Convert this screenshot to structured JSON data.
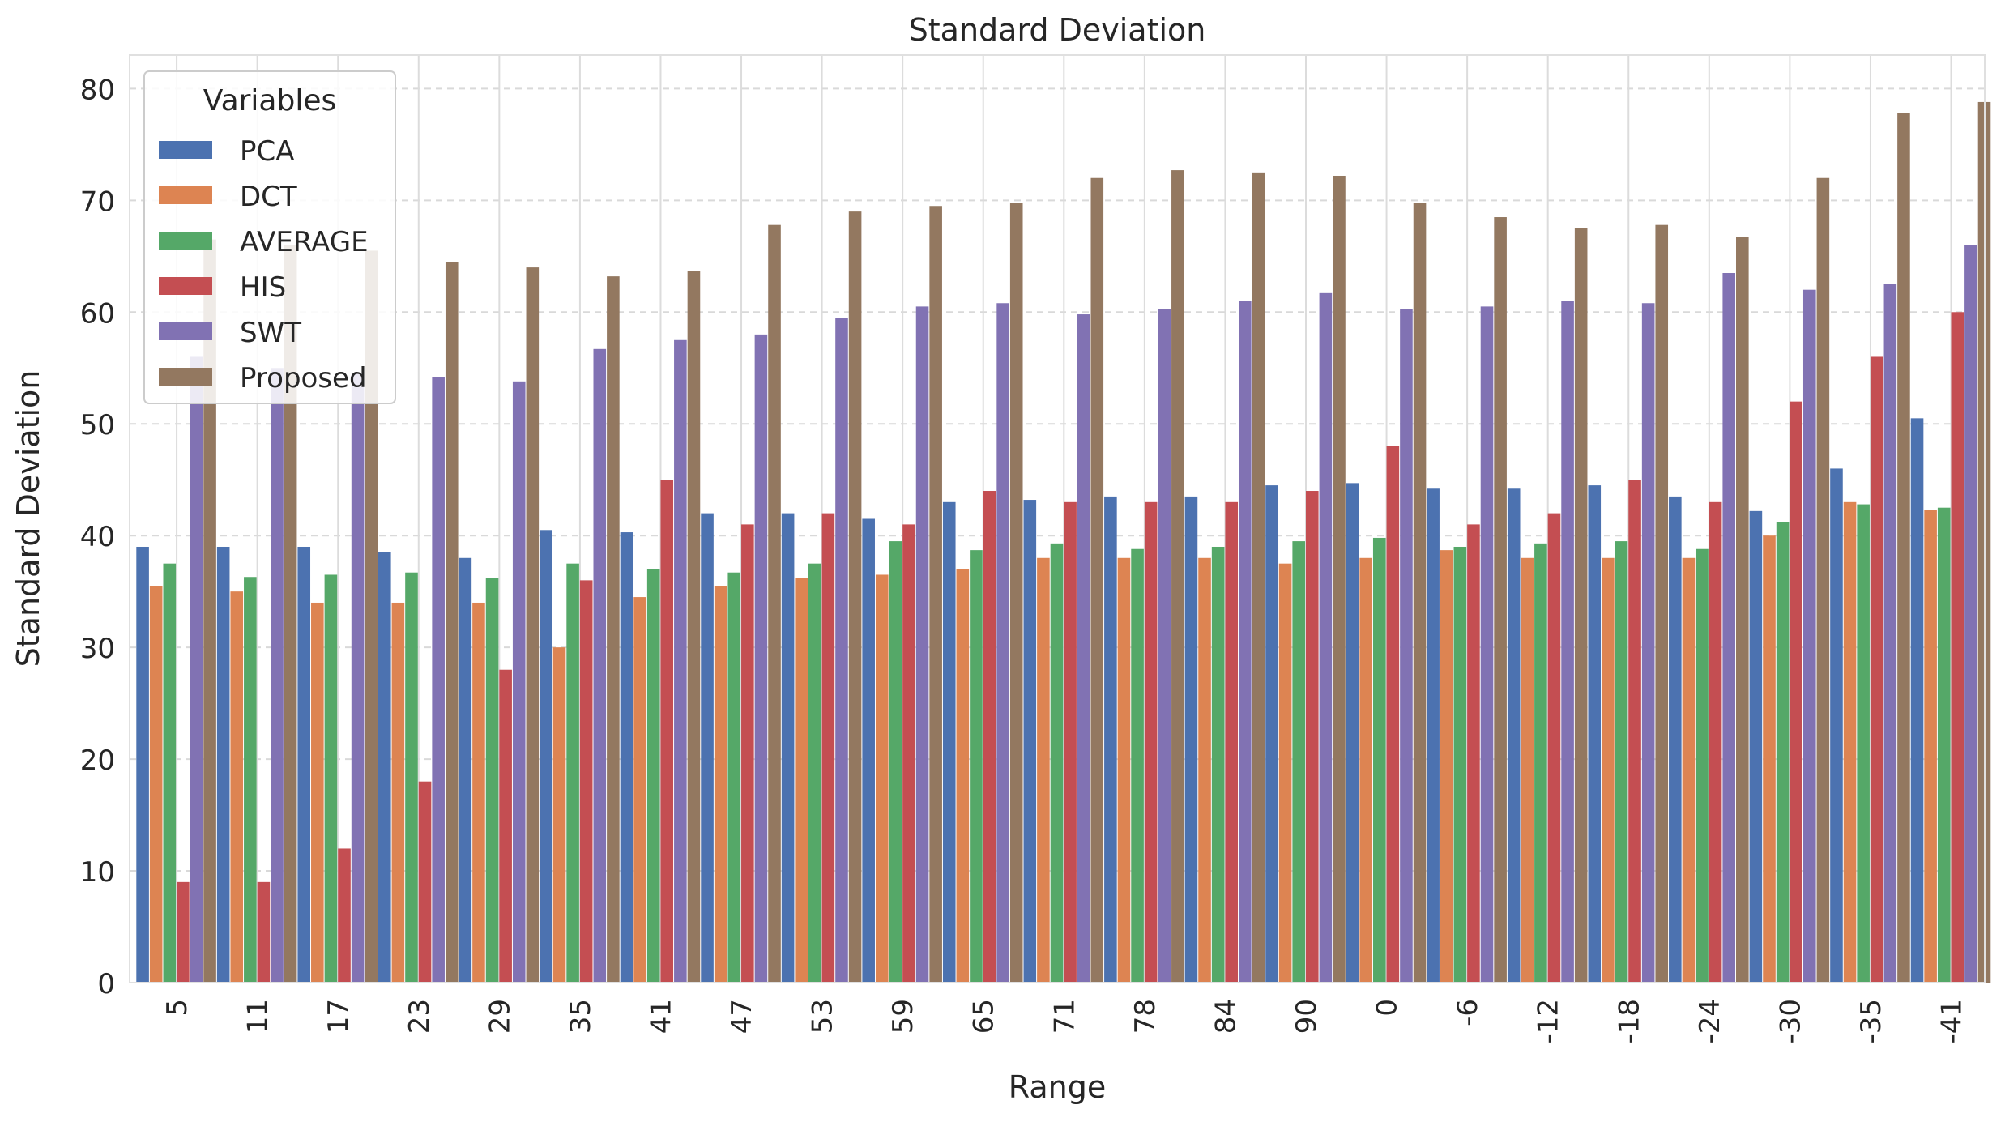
{
  "chart_data": {
    "type": "bar",
    "title": "Standard Deviation",
    "xlabel": "Range",
    "ylabel": "Standard Deviation",
    "ylim": [
      0,
      83
    ],
    "yticks": [
      0,
      10,
      20,
      30,
      40,
      50,
      60,
      70,
      80
    ],
    "grid": true,
    "legend": {
      "title": "Variables",
      "placement": "top-left"
    },
    "categories": [
      "5",
      "11",
      "17",
      "23",
      "29",
      "35",
      "41",
      "47",
      "53",
      "59",
      "65",
      "71",
      "78",
      "84",
      "90",
      "0",
      "-6",
      "-12",
      "-18",
      "-24",
      "-30",
      "-35",
      "-41"
    ],
    "series": [
      {
        "name": "PCA",
        "color": "#4c72b0",
        "values": [
          39,
          39,
          39,
          38.5,
          38,
          40.5,
          40.3,
          42,
          42,
          41.5,
          43,
          43.2,
          43.5,
          43.5,
          44.5,
          44.7,
          44.2,
          44.2,
          44.5,
          43.5,
          42.2,
          46,
          50.5
        ]
      },
      {
        "name": "DCT",
        "color": "#dd8452",
        "values": [
          35.5,
          35,
          34,
          34,
          34,
          30,
          34.5,
          35.5,
          36.2,
          36.5,
          37,
          38,
          38,
          38,
          37.5,
          38,
          38.7,
          38,
          38,
          38,
          40,
          43,
          42.3
        ]
      },
      {
        "name": "AVERAGE",
        "color": "#55a868",
        "values": [
          37.5,
          36.3,
          36.5,
          36.7,
          36.2,
          37.5,
          37,
          36.7,
          37.5,
          39.5,
          38.7,
          39.3,
          38.8,
          39,
          39.5,
          39.8,
          39,
          39.3,
          39.5,
          38.8,
          41.2,
          42.8,
          42.5
        ]
      },
      {
        "name": "HIS",
        "color": "#c44e52",
        "values": [
          9,
          9,
          12,
          18,
          28,
          36,
          45,
          41,
          42,
          41,
          44,
          43,
          43,
          43,
          44,
          48,
          41,
          42,
          45,
          43,
          52,
          56,
          60
        ]
      },
      {
        "name": "SWT",
        "color": "#8172b3",
        "values": [
          56,
          55,
          54.5,
          54.2,
          53.8,
          56.7,
          57.5,
          58,
          59.5,
          60.5,
          60.8,
          59.8,
          60.3,
          61,
          61.7,
          60.3,
          60.5,
          61,
          60.8,
          63.5,
          62,
          62.5,
          66
        ]
      },
      {
        "name": "Proposed",
        "color": "#937860",
        "values": [
          66.5,
          66,
          65.5,
          64.5,
          64,
          63.2,
          63.7,
          67.8,
          69,
          69.5,
          69.8,
          72,
          72.7,
          72.5,
          72.2,
          69.8,
          68.5,
          67.5,
          67.8,
          66.7,
          72,
          77.8,
          78.8
        ]
      }
    ]
  }
}
